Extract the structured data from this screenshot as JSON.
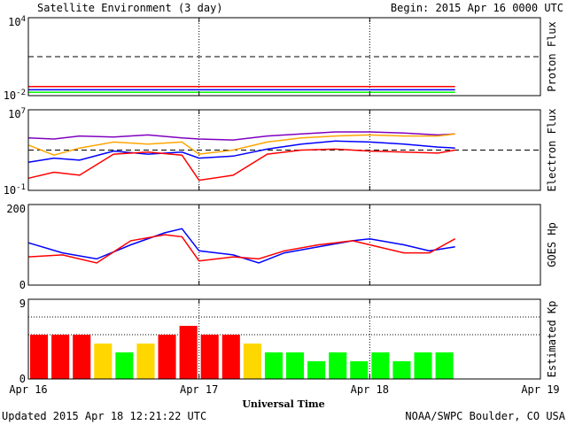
{
  "header": {
    "title": "Satellite Environment (3 day)",
    "begin": "Begin:  2015 Apr 16 0000 UTC"
  },
  "footer": {
    "updated": "Updated 2015 Apr 18 12:21:22 UTC",
    "credit": "NOAA/SWPC Boulder, CO USA",
    "xaxis_title": "Universal Time"
  },
  "colors": {
    "red": "#ff0000",
    "blue": "#0000ff",
    "green": "#00ff00",
    "orange": "#ffa500",
    "purple": "#8000c0",
    "yellow": "#ffd700"
  },
  "chart_data": [
    {
      "type": "line",
      "ylabel": "Proton Flux",
      "ytick_labels": [
        "10^4",
        "10^-2"
      ],
      "ylim": [
        -2,
        4
      ],
      "log_scale": true,
      "threshold_line": 1,
      "x_ticks": [
        "Apr 16",
        "Apr 17",
        "Apr 18",
        "Apr 19"
      ],
      "x_range_days": [
        0,
        3
      ],
      "series": [
        {
          "color": "red",
          "x": [
            0,
            0.5,
            1.0,
            1.5,
            2.0,
            2.5
          ],
          "y": [
            -1.3,
            -1.3,
            -1.3,
            -1.3,
            -1.3,
            -1.3
          ]
        },
        {
          "color": "blue",
          "x": [
            0,
            0.5,
            1.0,
            1.5,
            2.0,
            2.5
          ],
          "y": [
            -1.55,
            -1.55,
            -1.55,
            -1.55,
            -1.55,
            -1.55
          ]
        },
        {
          "color": "green",
          "x": [
            0,
            0.5,
            1.0,
            1.5,
            2.0,
            2.5
          ],
          "y": [
            -1.75,
            -1.75,
            -1.75,
            -1.75,
            -1.75,
            -1.75
          ]
        }
      ]
    },
    {
      "type": "line",
      "ylabel": "Electron Flux",
      "ytick_labels": [
        "10^7",
        "10^-1"
      ],
      "ylim": [
        -1,
        7
      ],
      "log_scale": true,
      "threshold_line": 3,
      "x_ticks": [
        "Apr 16",
        "Apr 17",
        "Apr 18",
        "Apr 19"
      ],
      "x_range_days": [
        0,
        3
      ],
      "series": [
        {
          "color": "purple",
          "x": [
            0,
            0.15,
            0.3,
            0.5,
            0.7,
            0.9,
            1.0,
            1.2,
            1.4,
            1.6,
            1.8,
            2.0,
            2.2,
            2.4,
            2.5
          ],
          "y": [
            4.2,
            4.1,
            4.4,
            4.3,
            4.5,
            4.2,
            4.1,
            4.0,
            4.4,
            4.6,
            4.8,
            4.8,
            4.7,
            4.5,
            4.6
          ]
        },
        {
          "color": "orange",
          "x": [
            0,
            0.15,
            0.3,
            0.5,
            0.7,
            0.9,
            1.0,
            1.2,
            1.4,
            1.6,
            1.8,
            2.0,
            2.2,
            2.4,
            2.5
          ],
          "y": [
            3.5,
            2.5,
            3.2,
            3.8,
            3.6,
            3.8,
            2.6,
            3.0,
            3.8,
            4.2,
            4.4,
            4.5,
            4.4,
            4.4,
            4.6
          ]
        },
        {
          "color": "blue",
          "x": [
            0,
            0.15,
            0.3,
            0.5,
            0.7,
            0.9,
            1.0,
            1.2,
            1.4,
            1.6,
            1.8,
            2.0,
            2.2,
            2.4,
            2.5
          ],
          "y": [
            1.8,
            2.2,
            2.0,
            2.9,
            2.6,
            2.8,
            2.2,
            2.4,
            3.1,
            3.6,
            3.9,
            3.8,
            3.6,
            3.3,
            3.2
          ]
        },
        {
          "color": "red",
          "x": [
            0,
            0.15,
            0.3,
            0.5,
            0.7,
            0.9,
            1.0,
            1.2,
            1.4,
            1.6,
            1.8,
            2.0,
            2.2,
            2.4,
            2.5
          ],
          "y": [
            0.2,
            0.8,
            0.5,
            2.6,
            2.8,
            2.5,
            0.0,
            0.5,
            2.6,
            3.0,
            3.1,
            2.9,
            2.8,
            2.7,
            3.0
          ]
        }
      ]
    },
    {
      "type": "line",
      "ylabel": "GOES Hp",
      "ytick_labels": [
        "200",
        "0"
      ],
      "ylim": [
        0,
        200
      ],
      "x_ticks": [
        "Apr 16",
        "Apr 17",
        "Apr 18",
        "Apr 19"
      ],
      "x_range_days": [
        0,
        3
      ],
      "series": [
        {
          "color": "blue",
          "x": [
            0,
            0.2,
            0.4,
            0.6,
            0.8,
            0.9,
            1.0,
            1.2,
            1.35,
            1.5,
            1.7,
            1.9,
            2.0,
            2.2,
            2.35,
            2.5
          ],
          "y": [
            105,
            80,
            65,
            100,
            130,
            140,
            85,
            75,
            55,
            80,
            95,
            110,
            115,
            100,
            85,
            95
          ]
        },
        {
          "color": "red",
          "x": [
            0,
            0.2,
            0.4,
            0.6,
            0.8,
            0.9,
            1.0,
            1.2,
            1.35,
            1.5,
            1.7,
            1.9,
            2.0,
            2.2,
            2.35,
            2.5
          ],
          "y": [
            70,
            75,
            55,
            110,
            125,
            120,
            60,
            70,
            65,
            85,
            100,
            110,
            100,
            80,
            80,
            115
          ]
        }
      ]
    },
    {
      "type": "bar",
      "ylabel": "Estimated Kp",
      "ytick_labels": [
        "9",
        "0"
      ],
      "ylim": [
        0,
        9
      ],
      "x_ticks": [
        "Apr 16",
        "Apr 17",
        "Apr 18",
        "Apr 19"
      ],
      "x_range_days": [
        0,
        3
      ],
      "values": [
        5,
        5,
        5,
        4,
        3,
        4,
        5,
        6,
        5,
        5,
        4,
        3,
        3,
        2,
        3,
        2,
        3,
        2,
        3,
        3
      ],
      "colors": [
        "red",
        "red",
        "red",
        "yellow",
        "green",
        "yellow",
        "red",
        "red",
        "red",
        "red",
        "yellow",
        "green",
        "green",
        "green",
        "green",
        "green",
        "green",
        "green",
        "green",
        "green"
      ]
    }
  ]
}
